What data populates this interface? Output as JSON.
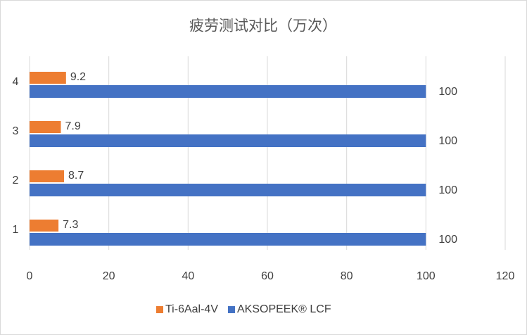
{
  "chart_data": {
    "type": "bar",
    "orientation": "horizontal",
    "title": "疲劳测试对比（万次）",
    "categories": [
      "1",
      "2",
      "3",
      "4"
    ],
    "series": [
      {
        "name": "Ti-6Aal-4V",
        "color": "#ed7d31",
        "values": [
          7.3,
          8.7,
          7.9,
          9.2
        ]
      },
      {
        "name": "AKSOPEEK® LCF",
        "color": "#4472c4",
        "values": [
          100,
          100,
          100,
          100
        ]
      }
    ],
    "xlim": [
      0,
      120
    ],
    "xticks": [
      0,
      20,
      40,
      60,
      80,
      100,
      120
    ],
    "grid": true,
    "legend": "bottom"
  }
}
